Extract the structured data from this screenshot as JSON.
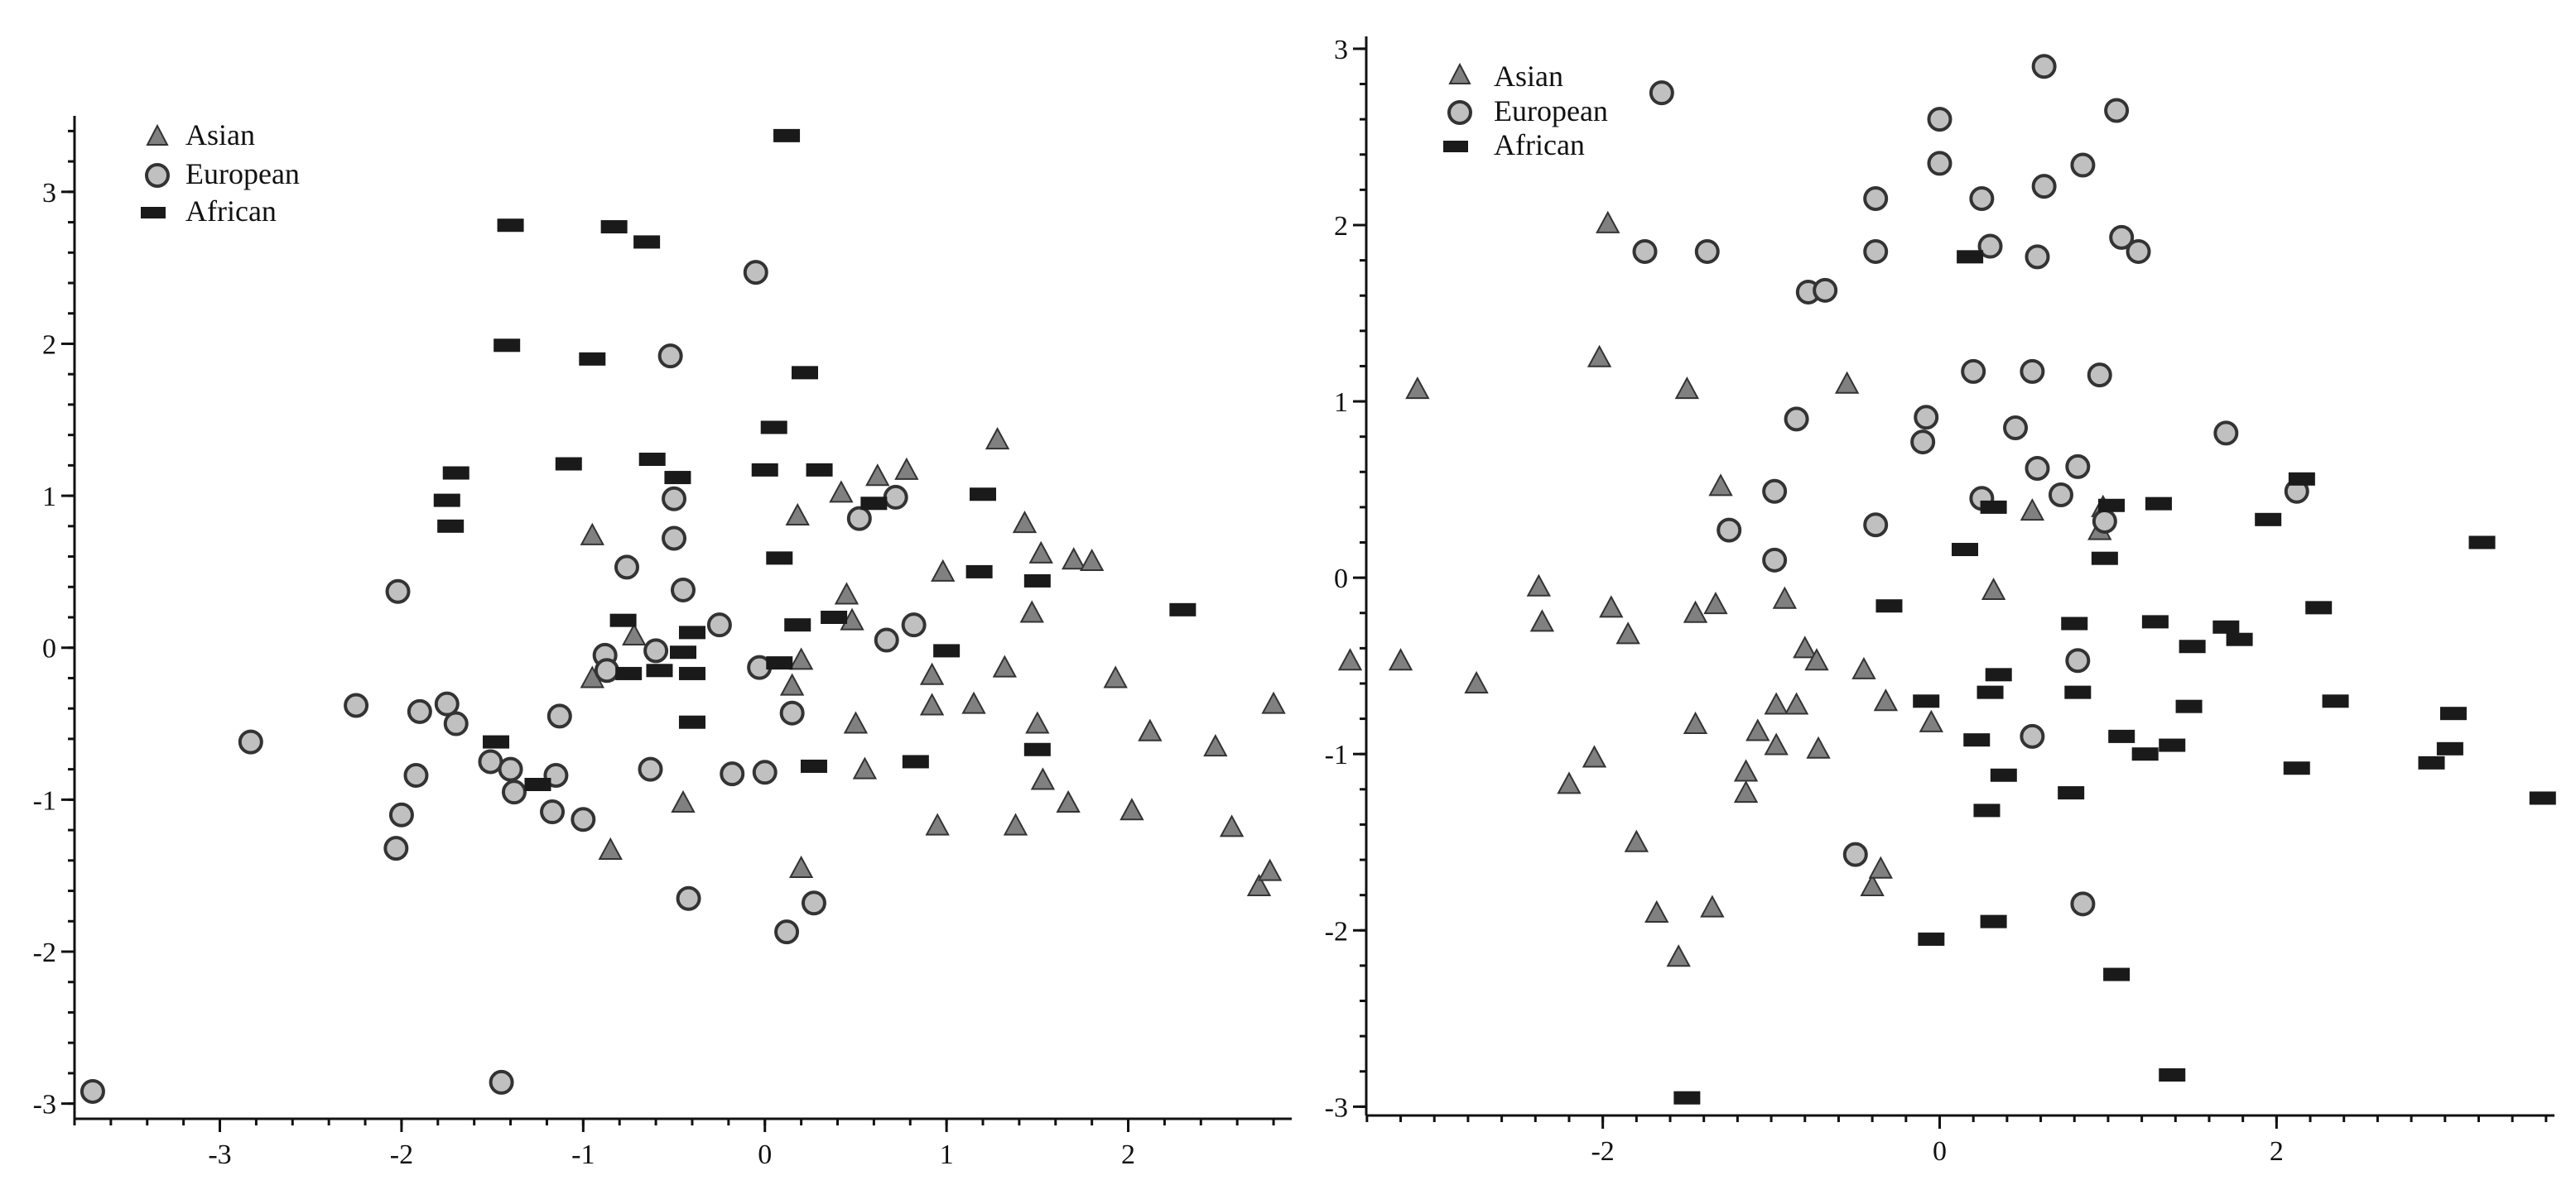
{
  "chart_data": [
    {
      "type": "scatter",
      "title": "",
      "xlabel": "",
      "ylabel": "",
      "xlim": [
        -3.8,
        2.9
      ],
      "ylim": [
        -3.1,
        3.5
      ],
      "xticks": [
        "-3",
        "-2",
        "-1",
        "0",
        "1",
        "2"
      ],
      "yticks": [
        "3",
        "2",
        "1",
        "0",
        "-1",
        "-2",
        "-3"
      ],
      "grid": false,
      "legend_position": "top-left",
      "series": [
        {
          "name": "Asian",
          "marker": "triangle",
          "color": "#808080",
          "points": [
            [
              -0.95,
              0.74
            ],
            [
              -0.95,
              -0.2
            ],
            [
              -0.72,
              0.08
            ],
            [
              -0.45,
              -1.02
            ],
            [
              -0.85,
              -1.33
            ],
            [
              0.18,
              0.87
            ],
            [
              0.15,
              -0.25
            ],
            [
              0.2,
              -0.08
            ],
            [
              0.2,
              -1.45
            ],
            [
              0.42,
              1.02
            ],
            [
              0.45,
              0.35
            ],
            [
              0.48,
              0.18
            ],
            [
              0.5,
              -0.5
            ],
            [
              0.55,
              -0.8
            ],
            [
              0.62,
              1.13
            ],
            [
              0.78,
              1.17
            ],
            [
              0.92,
              -0.18
            ],
            [
              0.92,
              -0.38
            ],
            [
              0.95,
              -1.17
            ],
            [
              0.98,
              0.5
            ],
            [
              1.15,
              -0.37
            ],
            [
              1.28,
              1.37
            ],
            [
              1.32,
              -0.13
            ],
            [
              1.38,
              -1.17
            ],
            [
              1.43,
              0.82
            ],
            [
              1.47,
              0.23
            ],
            [
              1.5,
              -0.5
            ],
            [
              1.52,
              0.62
            ],
            [
              1.53,
              -0.87
            ],
            [
              1.67,
              -1.02
            ],
            [
              1.7,
              0.58
            ],
            [
              1.8,
              0.57
            ],
            [
              1.93,
              -0.2
            ],
            [
              2.02,
              -1.07
            ],
            [
              2.12,
              -0.55
            ],
            [
              2.48,
              -0.65
            ],
            [
              2.57,
              -1.18
            ],
            [
              2.72,
              -1.57
            ],
            [
              2.78,
              -1.47
            ],
            [
              2.8,
              -0.37
            ]
          ]
        },
        {
          "name": "European",
          "marker": "circle",
          "color": "#c0c0c0",
          "points": [
            [
              -3.7,
              -2.92
            ],
            [
              -2.83,
              -0.62
            ],
            [
              -2.25,
              -0.38
            ],
            [
              -2.02,
              0.37
            ],
            [
              -2.03,
              -1.32
            ],
            [
              -2.0,
              -1.1
            ],
            [
              -1.92,
              -0.84
            ],
            [
              -1.9,
              -0.42
            ],
            [
              -1.75,
              -0.37
            ],
            [
              -1.7,
              -0.5
            ],
            [
              -1.51,
              -0.75
            ],
            [
              -1.45,
              -2.86
            ],
            [
              -1.4,
              -0.8
            ],
            [
              -1.38,
              -0.95
            ],
            [
              -1.17,
              -1.08
            ],
            [
              -1.15,
              -0.84
            ],
            [
              -1.13,
              -0.45
            ],
            [
              -1.0,
              -1.13
            ],
            [
              -0.88,
              -0.05
            ],
            [
              -0.87,
              -0.15
            ],
            [
              -0.76,
              0.53
            ],
            [
              -0.63,
              -0.8
            ],
            [
              -0.6,
              -0.02
            ],
            [
              -0.52,
              1.92
            ],
            [
              -0.5,
              0.98
            ],
            [
              -0.5,
              0.72
            ],
            [
              -0.45,
              0.38
            ],
            [
              -0.42,
              -1.65
            ],
            [
              -0.25,
              0.15
            ],
            [
              -0.18,
              -0.83
            ],
            [
              -0.05,
              2.47
            ],
            [
              -0.03,
              -0.13
            ],
            [
              0.0,
              -0.82
            ],
            [
              0.12,
              -1.87
            ],
            [
              0.15,
              -0.43
            ],
            [
              0.27,
              -1.68
            ],
            [
              0.52,
              0.85
            ],
            [
              0.67,
              0.05
            ],
            [
              0.72,
              0.99
            ],
            [
              0.82,
              0.15
            ]
          ]
        },
        {
          "name": "African",
          "marker": "bar",
          "color": "#1a1a1a",
          "points": [
            [
              -1.75,
              0.97
            ],
            [
              -1.73,
              0.8
            ],
            [
              -1.7,
              1.15
            ],
            [
              -1.48,
              -0.62
            ],
            [
              -1.4,
              2.78
            ],
            [
              -1.42,
              1.99
            ],
            [
              -1.25,
              -0.9
            ],
            [
              -1.08,
              1.21
            ],
            [
              -0.95,
              1.9
            ],
            [
              -0.83,
              2.77
            ],
            [
              -0.78,
              0.18
            ],
            [
              -0.75,
              -0.17
            ],
            [
              -0.65,
              2.67
            ],
            [
              -0.62,
              1.24
            ],
            [
              -0.58,
              -0.15
            ],
            [
              -0.48,
              1.12
            ],
            [
              -0.45,
              -0.03
            ],
            [
              -0.4,
              0.1
            ],
            [
              -0.4,
              -0.17
            ],
            [
              -0.4,
              -0.49
            ],
            [
              0.0,
              1.17
            ],
            [
              0.05,
              1.45
            ],
            [
              0.08,
              0.59
            ],
            [
              0.08,
              -0.1
            ],
            [
              0.12,
              3.37
            ],
            [
              0.18,
              0.15
            ],
            [
              0.22,
              1.81
            ],
            [
              0.27,
              -0.78
            ],
            [
              0.3,
              1.17
            ],
            [
              0.38,
              0.2
            ],
            [
              0.6,
              0.95
            ],
            [
              0.83,
              -0.75
            ],
            [
              1.0,
              -0.02
            ],
            [
              1.18,
              0.5
            ],
            [
              1.2,
              1.01
            ],
            [
              1.5,
              0.44
            ],
            [
              1.5,
              -0.67
            ],
            [
              2.3,
              0.25
            ]
          ]
        }
      ]
    },
    {
      "type": "scatter",
      "title": "",
      "xlabel": "",
      "ylabel": "",
      "xlim": [
        -3.65,
        3.65
      ],
      "ylim": [
        -3.05,
        3.07
      ],
      "xticks": [
        "-2",
        "0",
        "2"
      ],
      "yticks": [
        "3",
        "2",
        "1",
        "0",
        "-1",
        "-2",
        "-3"
      ],
      "grid": false,
      "legend_position": "top-left",
      "series": [
        {
          "name": "Asian",
          "marker": "triangle",
          "color": "#808080",
          "points": [
            [
              -3.5,
              -0.47
            ],
            [
              -3.2,
              -0.47
            ],
            [
              -3.1,
              1.07
            ],
            [
              -2.75,
              -0.6
            ],
            [
              -2.38,
              -0.05
            ],
            [
              -2.36,
              -0.25
            ],
            [
              -2.2,
              -1.17
            ],
            [
              -2.05,
              -1.02
            ],
            [
              -2.02,
              1.25
            ],
            [
              -1.97,
              2.01
            ],
            [
              -1.95,
              -0.17
            ],
            [
              -1.85,
              -0.32
            ],
            [
              -1.8,
              -1.5
            ],
            [
              -1.68,
              -1.9
            ],
            [
              -1.55,
              -2.15
            ],
            [
              -1.5,
              1.07
            ],
            [
              -1.45,
              -0.2
            ],
            [
              -1.45,
              -0.83
            ],
            [
              -1.35,
              -1.87
            ],
            [
              -1.33,
              -0.15
            ],
            [
              -1.3,
              0.52
            ],
            [
              -1.15,
              -1.1
            ],
            [
              -1.15,
              -1.22
            ],
            [
              -1.08,
              -0.87
            ],
            [
              -0.97,
              -0.72
            ],
            [
              -0.97,
              -0.95
            ],
            [
              -0.92,
              -0.12
            ],
            [
              -0.85,
              -0.72
            ],
            [
              -0.8,
              -0.4
            ],
            [
              -0.73,
              -0.47
            ],
            [
              -0.72,
              -0.97
            ],
            [
              -0.55,
              1.1
            ],
            [
              -0.45,
              -0.52
            ],
            [
              -0.4,
              -1.75
            ],
            [
              -0.35,
              -1.65
            ],
            [
              -0.32,
              -0.7
            ],
            [
              -0.05,
              -0.82
            ],
            [
              0.32,
              -0.07
            ],
            [
              0.55,
              0.38
            ],
            [
              0.95,
              0.27
            ],
            [
              0.97,
              0.4
            ]
          ]
        },
        {
          "name": "European",
          "marker": "circle",
          "color": "#c0c0c0",
          "points": [
            [
              -1.65,
              2.75
            ],
            [
              -1.75,
              1.85
            ],
            [
              -1.38,
              1.85
            ],
            [
              -1.25,
              0.27
            ],
            [
              -0.85,
              0.9
            ],
            [
              -0.78,
              1.62
            ],
            [
              -0.68,
              1.63
            ],
            [
              -0.98,
              0.49
            ],
            [
              -0.98,
              0.1
            ],
            [
              -0.38,
              2.15
            ],
            [
              -0.38,
              1.85
            ],
            [
              -0.38,
              0.3
            ],
            [
              -0.5,
              -1.57
            ],
            [
              -0.1,
              0.77
            ],
            [
              -0.08,
              0.91
            ],
            [
              0.0,
              2.6
            ],
            [
              0.0,
              2.35
            ],
            [
              0.2,
              1.17
            ],
            [
              0.25,
              2.15
            ],
            [
              0.25,
              0.45
            ],
            [
              0.3,
              1.88
            ],
            [
              0.45,
              0.85
            ],
            [
              0.55,
              1.17
            ],
            [
              0.55,
              -0.9
            ],
            [
              0.58,
              1.82
            ],
            [
              0.58,
              0.62
            ],
            [
              0.62,
              2.9
            ],
            [
              0.62,
              2.22
            ],
            [
              0.72,
              0.47
            ],
            [
              0.82,
              0.63
            ],
            [
              0.82,
              -0.47
            ],
            [
              0.85,
              2.34
            ],
            [
              0.85,
              -1.85
            ],
            [
              0.95,
              1.15
            ],
            [
              0.98,
              0.32
            ],
            [
              1.05,
              2.65
            ],
            [
              1.08,
              1.93
            ],
            [
              1.18,
              1.85
            ],
            [
              1.7,
              0.82
            ],
            [
              2.12,
              0.49
            ]
          ]
        },
        {
          "name": "African",
          "marker": "bar",
          "color": "#1a1a1a",
          "points": [
            [
              -1.5,
              -2.95
            ],
            [
              -0.3,
              -0.16
            ],
            [
              -0.08,
              -0.7
            ],
            [
              -0.05,
              -2.05
            ],
            [
              0.15,
              0.16
            ],
            [
              0.18,
              1.82
            ],
            [
              0.22,
              -0.92
            ],
            [
              0.28,
              -1.32
            ],
            [
              0.3,
              -0.65
            ],
            [
              0.32,
              0.4
            ],
            [
              0.32,
              -1.95
            ],
            [
              0.35,
              -0.55
            ],
            [
              0.38,
              -1.12
            ],
            [
              0.78,
              -1.22
            ],
            [
              0.8,
              -0.26
            ],
            [
              0.82,
              -0.65
            ],
            [
              0.98,
              0.11
            ],
            [
              1.02,
              0.41
            ],
            [
              1.05,
              -2.25
            ],
            [
              1.08,
              -0.9
            ],
            [
              1.22,
              -1.0
            ],
            [
              1.28,
              -0.25
            ],
            [
              1.3,
              0.42
            ],
            [
              1.38,
              -0.95
            ],
            [
              1.48,
              -0.73
            ],
            [
              1.5,
              -0.39
            ],
            [
              1.7,
              -0.28
            ],
            [
              1.78,
              -0.35
            ],
            [
              1.95,
              0.33
            ],
            [
              2.12,
              -1.08
            ],
            [
              2.15,
              0.56
            ],
            [
              2.25,
              -0.17
            ],
            [
              2.35,
              -0.7
            ],
            [
              1.38,
              -2.82
            ],
            [
              2.92,
              -1.05
            ],
            [
              3.03,
              -0.97
            ],
            [
              3.05,
              -0.77
            ],
            [
              3.22,
              0.2
            ],
            [
              3.58,
              -1.25
            ]
          ]
        }
      ]
    }
  ]
}
